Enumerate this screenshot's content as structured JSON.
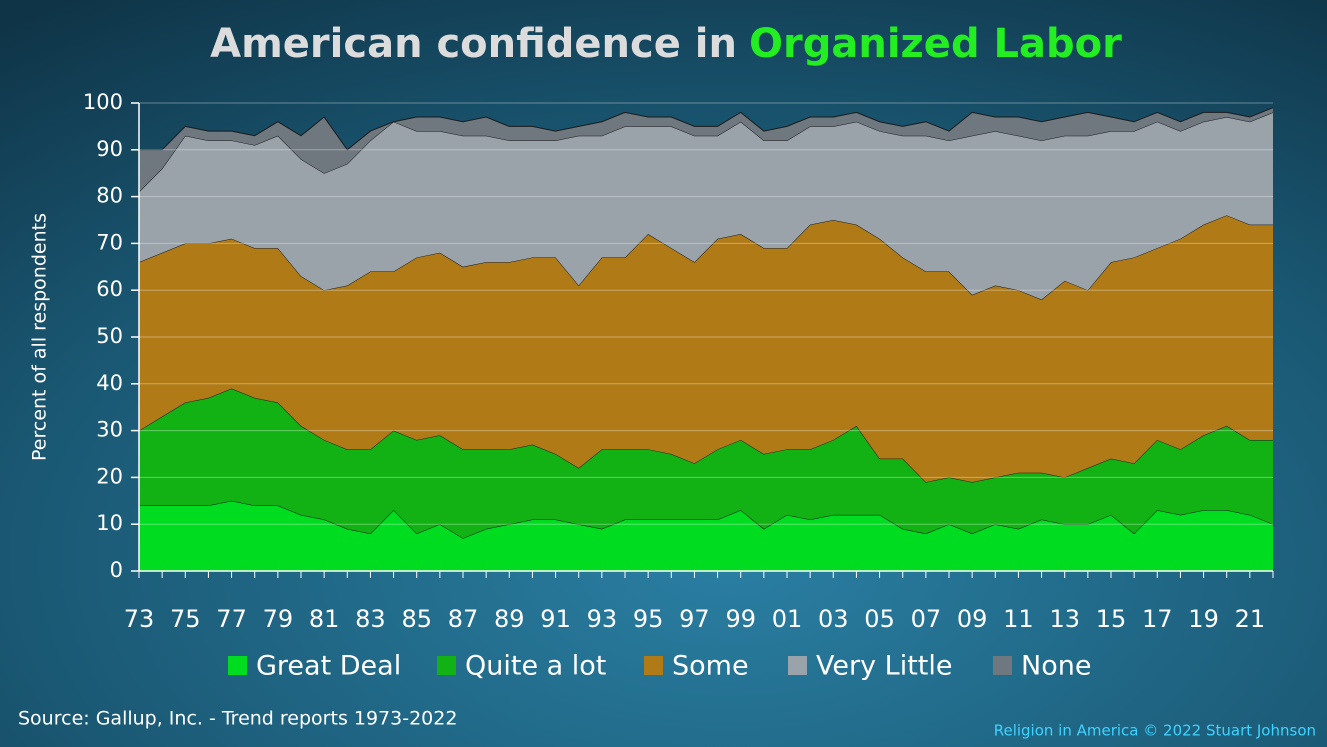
{
  "chart_data": {
    "type": "stacked_area",
    "title": "American confidence in",
    "title_highlight": "Organized Labor",
    "y_label": "Percent of all respondents",
    "source": "Source: Gallup, Inc. - Trend reports 1973-2022",
    "credit": "Religion in America © 2022 Stuart Johnson",
    "categories": [
      "73",
      null,
      "75",
      null,
      "77",
      null,
      "79",
      null,
      "81",
      null,
      "83",
      null,
      "85",
      null,
      "87",
      null,
      "89",
      null,
      "91",
      null,
      "93",
      null,
      "95",
      null,
      "97",
      null,
      "99",
      null,
      "01",
      null,
      "03",
      null,
      "05",
      null,
      "07",
      null,
      "09",
      null,
      "11",
      null,
      "13",
      null,
      "15",
      null,
      "17",
      null,
      "19",
      null,
      "21",
      null
    ],
    "series": [
      {
        "name": "Great Deal",
        "color": "#00dc20",
        "values": [
          14,
          14,
          14,
          14,
          15,
          14,
          14,
          12,
          11,
          9,
          8,
          13,
          8,
          10,
          7,
          9,
          10,
          11,
          11,
          10,
          9,
          11,
          11,
          11,
          11,
          11,
          13,
          9,
          12,
          11,
          12,
          12,
          12,
          9,
          8,
          10,
          8,
          10,
          9,
          11,
          10,
          10,
          12,
          8,
          13,
          12,
          13,
          13,
          12,
          10
        ]
      },
      {
        "name": "Quite a lot",
        "color": "#12b214",
        "values": [
          16,
          19,
          22,
          23,
          24,
          23,
          22,
          19,
          17,
          17,
          18,
          17,
          20,
          19,
          19,
          17,
          16,
          16,
          14,
          12,
          17,
          15,
          15,
          14,
          12,
          15,
          15,
          16,
          14,
          15,
          16,
          19,
          12,
          15,
          11,
          10,
          11,
          10,
          12,
          10,
          10,
          12,
          12,
          15,
          15,
          14,
          16,
          18,
          16,
          18
        ]
      },
      {
        "name": "Some",
        "color": "#b07b17",
        "values": [
          36,
          35,
          34,
          33,
          32,
          32,
          33,
          32,
          32,
          35,
          38,
          34,
          39,
          39,
          39,
          40,
          40,
          40,
          42,
          39,
          41,
          41,
          46,
          44,
          43,
          45,
          44,
          44,
          43,
          48,
          47,
          43,
          47,
          43,
          45,
          44,
          40,
          41,
          39,
          37,
          42,
          38,
          42,
          44,
          41,
          45,
          45,
          45,
          46,
          46
        ]
      },
      {
        "name": "Very Little",
        "color": "#9aa2aa",
        "values": [
          15,
          18,
          23,
          22,
          21,
          22,
          24,
          25,
          25,
          26,
          28,
          32,
          27,
          26,
          28,
          27,
          26,
          25,
          25,
          32,
          26,
          28,
          23,
          26,
          27,
          22,
          24,
          23,
          23,
          21,
          20,
          22,
          23,
          26,
          29,
          28,
          34,
          33,
          33,
          34,
          31,
          33,
          28,
          27,
          27,
          23,
          22,
          21,
          22,
          24
        ]
      },
      {
        "name": "None",
        "color": "#6f777f",
        "values": [
          9,
          4,
          2,
          2,
          2,
          2,
          3,
          5,
          12,
          3,
          2,
          0,
          3,
          3,
          3,
          4,
          3,
          3,
          2,
          2,
          3,
          3,
          2,
          2,
          2,
          2,
          2,
          2,
          3,
          2,
          2,
          2,
          2,
          2,
          3,
          2,
          5,
          3,
          4,
          4,
          4,
          5,
          3,
          2,
          2,
          2,
          2,
          1,
          1,
          1
        ]
      }
    ],
    "ylim": [
      0,
      100
    ],
    "yticks": [
      0,
      10,
      20,
      30,
      40,
      50,
      60,
      70,
      80,
      90,
      100
    ],
    "grid": true,
    "legend": "bottom"
  }
}
